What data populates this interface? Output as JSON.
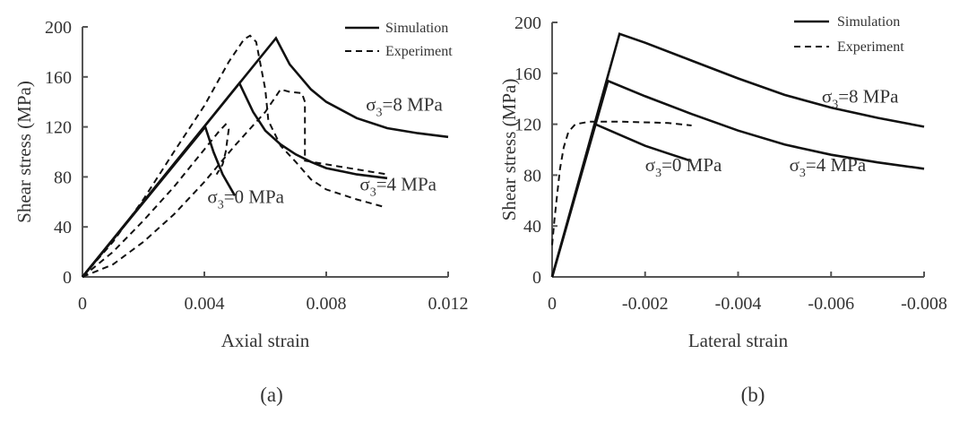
{
  "chart_data": [
    {
      "id": "a",
      "type": "line",
      "caption": "(a)",
      "xlabel": "Axial strain",
      "ylabel": "Shear stress (MPa)",
      "xlim": [
        0,
        0.012
      ],
      "ylim": [
        0,
        200
      ],
      "xticks": [
        0,
        0.004,
        0.008,
        0.012
      ],
      "xtick_labels": [
        "0",
        "0.004",
        "0.008",
        "0.012"
      ],
      "yticks": [
        0,
        40,
        80,
        120,
        160,
        200
      ],
      "ytick_labels": [
        "0",
        "40",
        "80",
        "120",
        "160",
        "200"
      ],
      "grid": false,
      "legend": {
        "placement": "top-right",
        "entries": [
          {
            "label": "Simulation",
            "style": "solid"
          },
          {
            "label": "Experiment",
            "style": "dashed"
          }
        ]
      },
      "series": [
        {
          "name": "Simulation σ3=0 MPa",
          "style": "solid",
          "points": [
            [
              0,
              0
            ],
            [
              0.00403,
              120
            ],
            [
              0.0043,
              100
            ],
            [
              0.0046,
              82
            ],
            [
              0.005,
              65
            ]
          ]
        },
        {
          "name": "Simulation σ3=4 MPa",
          "style": "solid",
          "points": [
            [
              0,
              0
            ],
            [
              0.00515,
              155
            ],
            [
              0.0056,
              132
            ],
            [
              0.006,
              117
            ],
            [
              0.0065,
              106
            ],
            [
              0.007,
              98
            ],
            [
              0.0075,
              92
            ],
            [
              0.008,
              87
            ],
            [
              0.009,
              82
            ],
            [
              0.01,
              79
            ]
          ]
        },
        {
          "name": "Simulation σ3=8 MPa",
          "style": "solid",
          "points": [
            [
              0,
              0
            ],
            [
              0.00635,
              191
            ],
            [
              0.0068,
              170
            ],
            [
              0.0075,
              150
            ],
            [
              0.008,
              140
            ],
            [
              0.009,
              127
            ],
            [
              0.01,
              119
            ],
            [
              0.011,
              115
            ],
            [
              0.012,
              112
            ]
          ]
        },
        {
          "name": "Experiment σ3=0 MPa",
          "style": "dashed",
          "points": [
            [
              0,
              0
            ],
            [
              0.001,
              20
            ],
            [
              0.002,
              45
            ],
            [
              0.003,
              72
            ],
            [
              0.004,
              102
            ],
            [
              0.0045,
              117
            ],
            [
              0.0047,
              122
            ],
            [
              0.0048,
              118
            ],
            [
              0.0047,
              100
            ],
            [
              0.0046,
              90
            ],
            [
              0.0044,
              82
            ]
          ]
        },
        {
          "name": "Experiment σ3=4 MPa",
          "style": "dashed",
          "points": [
            [
              0,
              0
            ],
            [
              0.001,
              10
            ],
            [
              0.002,
              28
            ],
            [
              0.003,
              50
            ],
            [
              0.004,
              76
            ],
            [
              0.005,
              105
            ],
            [
              0.006,
              132
            ],
            [
              0.0065,
              150
            ],
            [
              0.0068,
              148
            ],
            [
              0.0072,
              147
            ],
            [
              0.0073,
              140
            ],
            [
              0.0073,
              110
            ],
            [
              0.0073,
              93
            ],
            [
              0.008,
              90
            ],
            [
              0.009,
              86
            ],
            [
              0.01,
              82
            ]
          ]
        },
        {
          "name": "Experiment σ3=8 MPa",
          "style": "dashed",
          "points": [
            [
              0,
              0
            ],
            [
              0.001,
              28
            ],
            [
              0.002,
              62
            ],
            [
              0.003,
              100
            ],
            [
              0.004,
              137
            ],
            [
              0.0048,
              172
            ],
            [
              0.0053,
              190
            ],
            [
              0.0055,
              193
            ],
            [
              0.0057,
              188
            ],
            [
              0.006,
              150
            ],
            [
              0.0061,
              125
            ],
            [
              0.0065,
              105
            ],
            [
              0.007,
              92
            ],
            [
              0.0075,
              78
            ],
            [
              0.008,
              70
            ],
            [
              0.009,
              62
            ],
            [
              0.0099,
              56
            ]
          ]
        }
      ],
      "annotations": [
        {
          "text_base": "σ",
          "sub": "3",
          "text_rest": "=8 MPa",
          "x": 0.0093,
          "y": 133
        },
        {
          "text_base": "σ",
          "sub": "3",
          "text_rest": "=4 MPa",
          "x": 0.0091,
          "y": 69
        },
        {
          "text_base": "σ",
          "sub": "3",
          "text_rest": "=0 MPa",
          "x": 0.0041,
          "y": 59
        }
      ]
    },
    {
      "id": "b",
      "type": "line",
      "caption": "(b)",
      "xlabel": "Lateral strain",
      "ylabel": "Shear stress (MPa)",
      "xlim": [
        0,
        -0.008
      ],
      "ylim": [
        0,
        200
      ],
      "xticks": [
        0,
        -0.002,
        -0.004,
        -0.006,
        -0.008
      ],
      "xtick_labels": [
        "0",
        "-0.002",
        "-0.004",
        "-0.006",
        "-0.008"
      ],
      "yticks": [
        0,
        40,
        80,
        120,
        160,
        200
      ],
      "ytick_labels": [
        "0",
        "40",
        "80",
        "120",
        "160",
        "200"
      ],
      "grid": false,
      "legend": {
        "placement": "top-right",
        "entries": [
          {
            "label": "Simulation",
            "style": "solid"
          },
          {
            "label": "Experiment",
            "style": "dashed"
          }
        ]
      },
      "series": [
        {
          "name": "Simulation σ3=0 MPa",
          "style": "solid",
          "points": [
            [
              0,
              0
            ],
            [
              -0.00093,
              120
            ],
            [
              -0.0015,
              111
            ],
            [
              -0.002,
              103
            ],
            [
              -0.0025,
              97
            ],
            [
              -0.003,
              91
            ]
          ]
        },
        {
          "name": "Simulation σ3=4 MPa",
          "style": "solid",
          "points": [
            [
              0,
              0
            ],
            [
              -0.0012,
              154
            ],
            [
              -0.002,
              142
            ],
            [
              -0.003,
              128
            ],
            [
              -0.004,
              115
            ],
            [
              -0.005,
              104
            ],
            [
              -0.006,
              96
            ],
            [
              -0.007,
              90
            ],
            [
              -0.008,
              85
            ]
          ]
        },
        {
          "name": "Simulation σ3=8 MPa",
          "style": "solid",
          "points": [
            [
              0,
              0
            ],
            [
              -0.00145,
              191
            ],
            [
              -0.002,
              184
            ],
            [
              -0.003,
              170
            ],
            [
              -0.004,
              156
            ],
            [
              -0.005,
              143
            ],
            [
              -0.006,
              133
            ],
            [
              -0.007,
              125
            ],
            [
              -0.008,
              118
            ]
          ]
        },
        {
          "name": "Experiment σ3=0 MPa",
          "style": "dashed",
          "points": [
            [
              0,
              25
            ],
            [
              -5e-05,
              45
            ],
            [
              -0.0001,
              62
            ],
            [
              -0.00017,
              85
            ],
            [
              -0.00025,
              102
            ],
            [
              -0.00035,
              114
            ],
            [
              -0.0005,
              120
            ],
            [
              -0.0008,
              122
            ],
            [
              -0.0015,
              122
            ],
            [
              -0.0025,
              121
            ],
            [
              -0.003,
              119
            ]
          ]
        }
      ],
      "annotations": [
        {
          "text_base": "σ",
          "sub": "3",
          "text_rest": "=8 MPa",
          "x": -0.0058,
          "y": 137
        },
        {
          "text_base": "σ",
          "sub": "3",
          "text_rest": "=4 MPa",
          "x": -0.0051,
          "y": 83
        },
        {
          "text_base": "σ",
          "sub": "3",
          "text_rest": "=0 MPa",
          "x": -0.002,
          "y": 83
        }
      ]
    }
  ]
}
